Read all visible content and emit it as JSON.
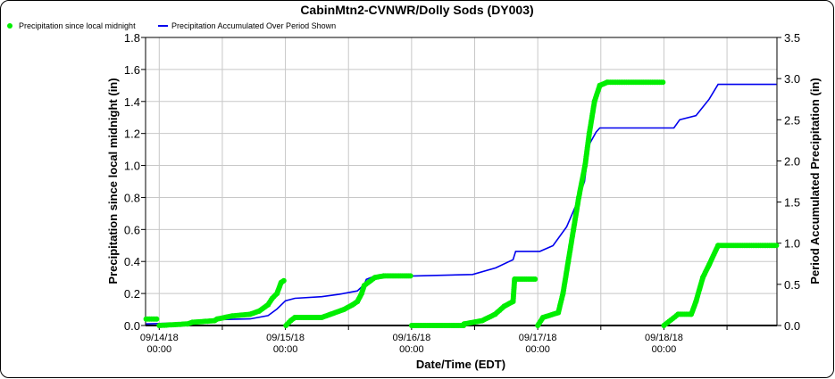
{
  "chart_data": {
    "type": "line",
    "title": "CabinMtn2-CVNWR/Dolly Sods (DY003)",
    "xlabel": "Date/Time (EDT)",
    "ylabel": "Precipitation since local midnight (in)",
    "y2label": "Period Accumulated Precipitation (in)",
    "x_unit": "hours since 09/14/18 00:00",
    "xlim": [
      -2.6,
      117.5
    ],
    "ylim": [
      0,
      1.8
    ],
    "y2lim": [
      0,
      3.5
    ],
    "yticks": [
      "0.0",
      "0.2",
      "0.4",
      "0.6",
      "0.8",
      "1.0",
      "1.2",
      "1.4",
      "1.6",
      "1.8"
    ],
    "y2ticks": [
      "0.0",
      "0.5",
      "1.0",
      "1.5",
      "2.0",
      "2.5",
      "3.0",
      "3.5"
    ],
    "xticks": [
      {
        "t": 0,
        "date": "09/14/18",
        "time": "00:00"
      },
      {
        "t": 24,
        "date": "09/15/18",
        "time": "00:00"
      },
      {
        "t": 48,
        "date": "09/16/18",
        "time": "00:00"
      },
      {
        "t": 72,
        "date": "09/17/18",
        "time": "00:00"
      },
      {
        "t": 96,
        "date": "09/18/18",
        "time": "00:00"
      }
    ],
    "grid": true,
    "legend_position": "top-left",
    "series": [
      {
        "name": "Precipitation since local midnight",
        "axis": "left",
        "style": "dots",
        "color": "#00ee00",
        "segments": [
          [
            [
              -2.5,
              0.04
            ],
            [
              -0.5,
              0.04
            ]
          ],
          [
            [
              0,
              0.0
            ],
            [
              5.4,
              0.01
            ],
            [
              6.3,
              0.02
            ],
            [
              10.5,
              0.03
            ],
            [
              11,
              0.04
            ],
            [
              13.9,
              0.06
            ],
            [
              17.3,
              0.07
            ],
            [
              19,
              0.09
            ],
            [
              20.7,
              0.13
            ],
            [
              21.5,
              0.17
            ],
            [
              22.4,
              0.2
            ],
            [
              23.2,
              0.27
            ],
            [
              23.7,
              0.28
            ]
          ],
          [
            [
              24.1,
              0
            ],
            [
              25,
              0.03
            ],
            [
              25.8,
              0.05
            ],
            [
              30.9,
              0.05
            ],
            [
              32.6,
              0.07
            ],
            [
              35.1,
              0.1
            ],
            [
              36.8,
              0.13
            ],
            [
              37.7,
              0.15
            ],
            [
              38.5,
              0.2
            ],
            [
              39,
              0.25
            ],
            [
              41,
              0.3
            ],
            [
              42.7,
              0.31
            ],
            [
              47.8,
              0.31
            ]
          ],
          [
            [
              48,
              0
            ],
            [
              57.9,
              0
            ],
            [
              58,
              0.01
            ],
            [
              61.4,
              0.03
            ],
            [
              63.9,
              0.07
            ],
            [
              65.6,
              0.12
            ],
            [
              67.3,
              0.15
            ],
            [
              67.6,
              0.29
            ],
            [
              71.5,
              0.29
            ]
          ],
          [
            [
              72,
              0
            ],
            [
              73,
              0.05
            ],
            [
              75.9,
              0.08
            ],
            [
              76.8,
              0.2
            ],
            [
              77.8,
              0.4
            ],
            [
              78.8,
              0.6
            ],
            [
              79.8,
              0.8
            ],
            [
              81,
              1.0
            ],
            [
              81.8,
              1.2
            ],
            [
              82.8,
              1.4
            ],
            [
              83.8,
              1.5
            ],
            [
              85.2,
              1.52
            ],
            [
              95.8,
              1.52
            ]
          ],
          [
            [
              96,
              0
            ],
            [
              98.7,
              0.07
            ],
            [
              101.2,
              0.07
            ],
            [
              102.1,
              0.15
            ],
            [
              103.4,
              0.3
            ],
            [
              104.6,
              0.38
            ],
            [
              106.3,
              0.5
            ],
            [
              117.4,
              0.5
            ]
          ]
        ]
      },
      {
        "name": "Precipitation Accumulated Over Period Shown",
        "axis": "right",
        "style": "line",
        "color": "#0000ee",
        "points": [
          [
            -2.5,
            0.02
          ],
          [
            3.7,
            0.03
          ],
          [
            10.5,
            0.07
          ],
          [
            17.3,
            0.08
          ],
          [
            20.7,
            0.12
          ],
          [
            22.4,
            0.2
          ],
          [
            24,
            0.3
          ],
          [
            25.8,
            0.33
          ],
          [
            30.9,
            0.35
          ],
          [
            34.3,
            0.38
          ],
          [
            37.7,
            0.42
          ],
          [
            39,
            0.5
          ],
          [
            39.4,
            0.56
          ],
          [
            41,
            0.6
          ],
          [
            47.8,
            0.6
          ],
          [
            59.6,
            0.62
          ],
          [
            64,
            0.7
          ],
          [
            67.3,
            0.8
          ],
          [
            67.8,
            0.9
          ],
          [
            72.4,
            0.9
          ],
          [
            74.9,
            0.97
          ],
          [
            77.5,
            1.2
          ],
          [
            79.2,
            1.45
          ],
          [
            80.9,
            1.75
          ],
          [
            81.8,
            2.2
          ],
          [
            83.1,
            2.35
          ],
          [
            83.8,
            2.4
          ],
          [
            97.9,
            2.4
          ],
          [
            99,
            2.5
          ],
          [
            102.1,
            2.55
          ],
          [
            104.6,
            2.75
          ],
          [
            106.3,
            2.93
          ],
          [
            117.4,
            2.93
          ]
        ]
      }
    ]
  }
}
